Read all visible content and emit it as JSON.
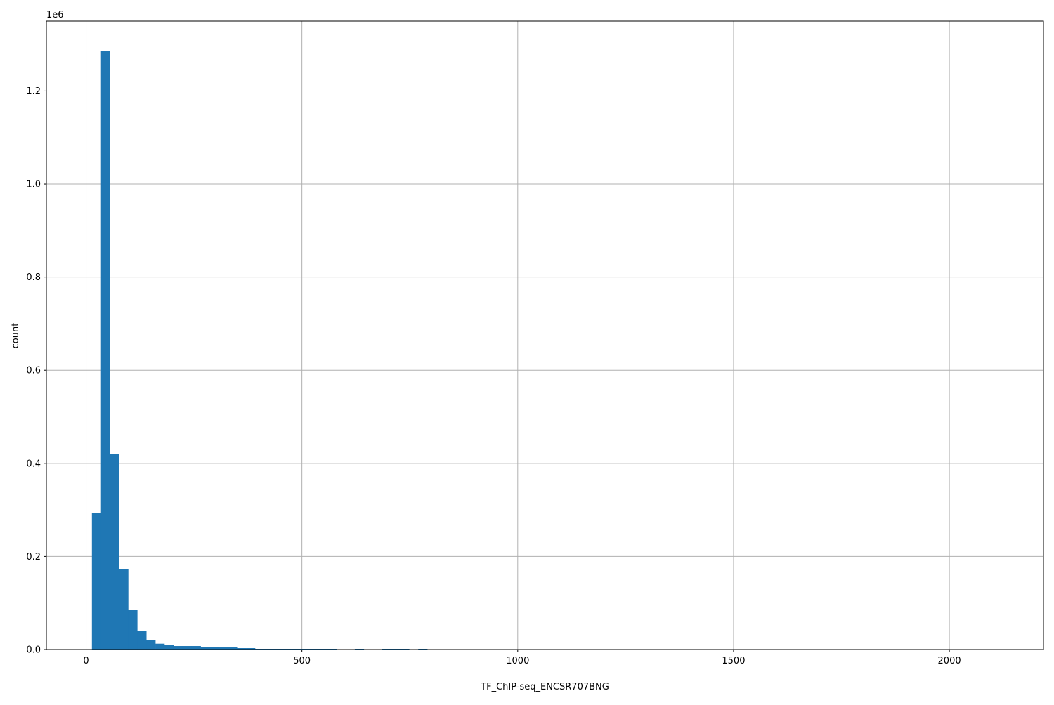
{
  "chart_data": {
    "type": "bar",
    "subtype": "histogram",
    "title": "",
    "xlabel": "TF_ChIP-seq_ENCSR707BNG",
    "ylabel": "count",
    "y_offset_label": "1e6",
    "xlim": [
      -92,
      2218
    ],
    "ylim": [
      0,
      1350000
    ],
    "xticks": [
      0,
      500,
      1000,
      1500,
      2000
    ],
    "xtick_labels": [
      "0",
      "500",
      "1000",
      "1500",
      "2000"
    ],
    "yticks": [
      0,
      200000,
      400000,
      600000,
      800000,
      1000000,
      1200000
    ],
    "ytick_labels": [
      "0.0",
      "0.2",
      "0.4",
      "0.6",
      "0.8",
      "1.0",
      "1.2"
    ],
    "grid": true,
    "bar_color": "#1f77b4",
    "bins": 100,
    "bin_range": [
      13.5,
      2113.5
    ],
    "values": [
      293000,
      1286000,
      420000,
      172000,
      85000,
      40000,
      21000,
      12500,
      10500,
      7500,
      7500,
      7500,
      6000,
      6000,
      4500,
      4500,
      3000,
      3000,
      1500,
      1500,
      1500,
      1500,
      1500,
      1500,
      1500,
      1500,
      1500,
      200,
      200,
      1500,
      200,
      200,
      1500,
      1500,
      1500,
      300,
      1500,
      0,
      0,
      0,
      0,
      0,
      0,
      0,
      0,
      0,
      0,
      0,
      0,
      0,
      0,
      0,
      0,
      0,
      0,
      0,
      0,
      0,
      0,
      0,
      0,
      0,
      0,
      0,
      0,
      0,
      0,
      0,
      0,
      0,
      0,
      0,
      0,
      0,
      0,
      0,
      0,
      0,
      0,
      0,
      0,
      0,
      0,
      0,
      0,
      0,
      0,
      0,
      0,
      0,
      0,
      0,
      0,
      0,
      0,
      0,
      0,
      0,
      0,
      0
    ]
  }
}
